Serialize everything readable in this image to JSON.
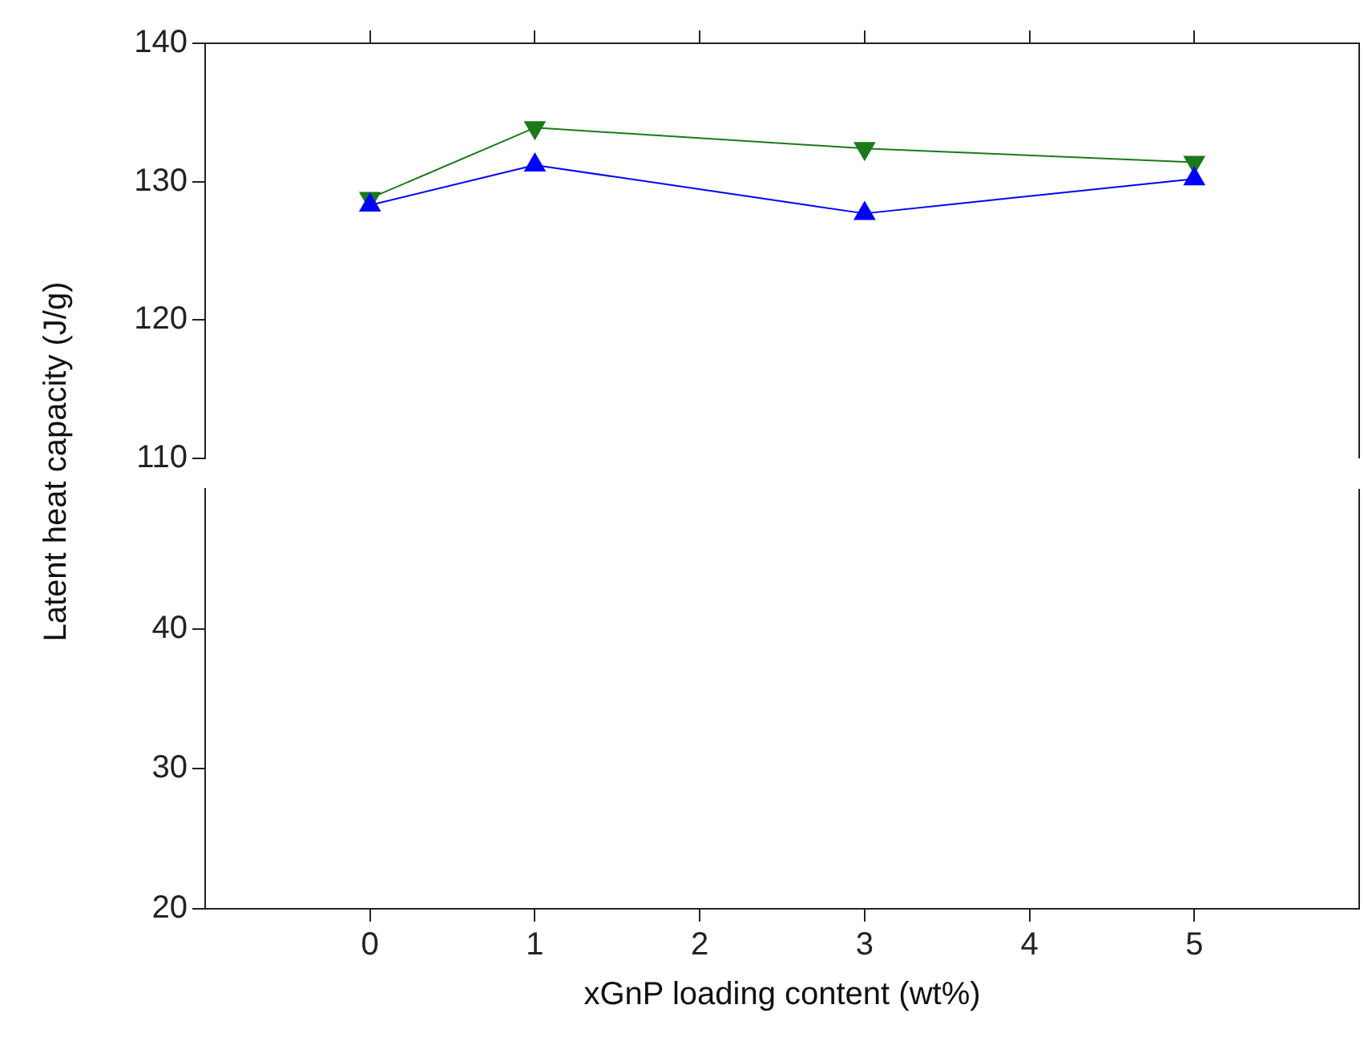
{
  "chart_data": [
    {
      "type": "line",
      "ylabel": "Latent heat capacity (J/g)",
      "x": [
        0,
        1,
        3,
        5
      ],
      "xlim": [
        -1,
        6
      ],
      "xticks": [
        0,
        1,
        2,
        3,
        4,
        5
      ],
      "ylim": [
        110,
        140
      ],
      "yticks": [
        110,
        120,
        130,
        140
      ],
      "tick_labels": "y",
      "grid": false,
      "legend": false,
      "series": [
        {
          "color": "#0000ff",
          "marker": "triangle",
          "values": [
            128.3,
            131.2,
            127.7,
            130.2
          ]
        },
        {
          "color": "#1a7a1a",
          "marker": "triangle-down",
          "values": [
            128.8,
            133.9,
            132.4,
            131.4
          ]
        }
      ]
    },
    {
      "type": "line",
      "xlabel": "xGnP loading content (wt%)",
      "xlim": [
        -1,
        6
      ],
      "xticks": [
        0,
        1,
        2,
        3,
        4,
        5
      ],
      "ylim": [
        20,
        50
      ],
      "yticks": [
        20,
        30,
        40
      ],
      "grid": false,
      "legend": false
    }
  ]
}
